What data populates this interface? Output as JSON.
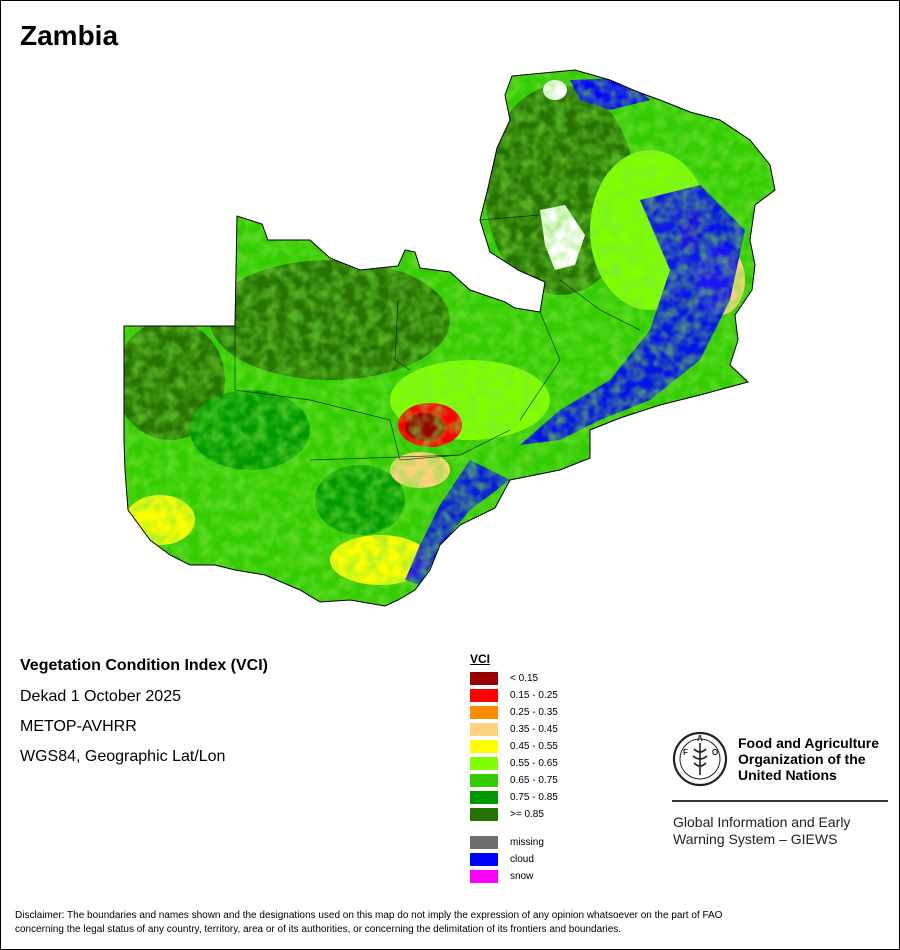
{
  "map": {
    "title": "Zambia",
    "country": "Zambia",
    "product": {
      "title": "Vegetation Condition Index (VCI)",
      "period": "Dekad 1 October 2025",
      "sensor": "METOP-AVHRR",
      "projection": "WGS84, Geographic Lat/Lon"
    }
  },
  "legend": {
    "title": "VCI",
    "classes": [
      {
        "label": "< 0.15",
        "color": "#990000"
      },
      {
        "label": "0.15 - 0.25",
        "color": "#ff0000"
      },
      {
        "label": "0.25 - 0.35",
        "color": "#ff8c00"
      },
      {
        "label": "0.35 - 0.45",
        "color": "#ffd27f"
      },
      {
        "label": "0.45 - 0.55",
        "color": "#ffff00"
      },
      {
        "label": "0.55 - 0.65",
        "color": "#80ff00"
      },
      {
        "label": "0.65 - 0.75",
        "color": "#33cc00"
      },
      {
        "label": "0.75 - 0.85",
        "color": "#009900"
      },
      {
        "label": ">= 0.85",
        "color": "#267300"
      }
    ],
    "other": [
      {
        "label": "missing",
        "color": "#6e6e6e"
      },
      {
        "label": "cloud",
        "color": "#0000ff"
      },
      {
        "label": "snow",
        "color": "#ff00ff"
      }
    ]
  },
  "organization": {
    "name_lines": [
      "Food and Agriculture",
      "Organization of the",
      "United Nations"
    ],
    "emblem_text": "FAO FIAT PANIS",
    "system_lines": [
      "Global Information and Early",
      "Warning System – GIEWS"
    ]
  },
  "disclaimer": {
    "line1": "Disclaimer: The boundaries and names shown and the designations used on this map do not imply the expression of any opinion whatsoever on the part of FAO",
    "line2": "concerning the legal status of any country, territory, area or of its authorities, or concerning the delimitation of its frontiers and boundaries."
  }
}
